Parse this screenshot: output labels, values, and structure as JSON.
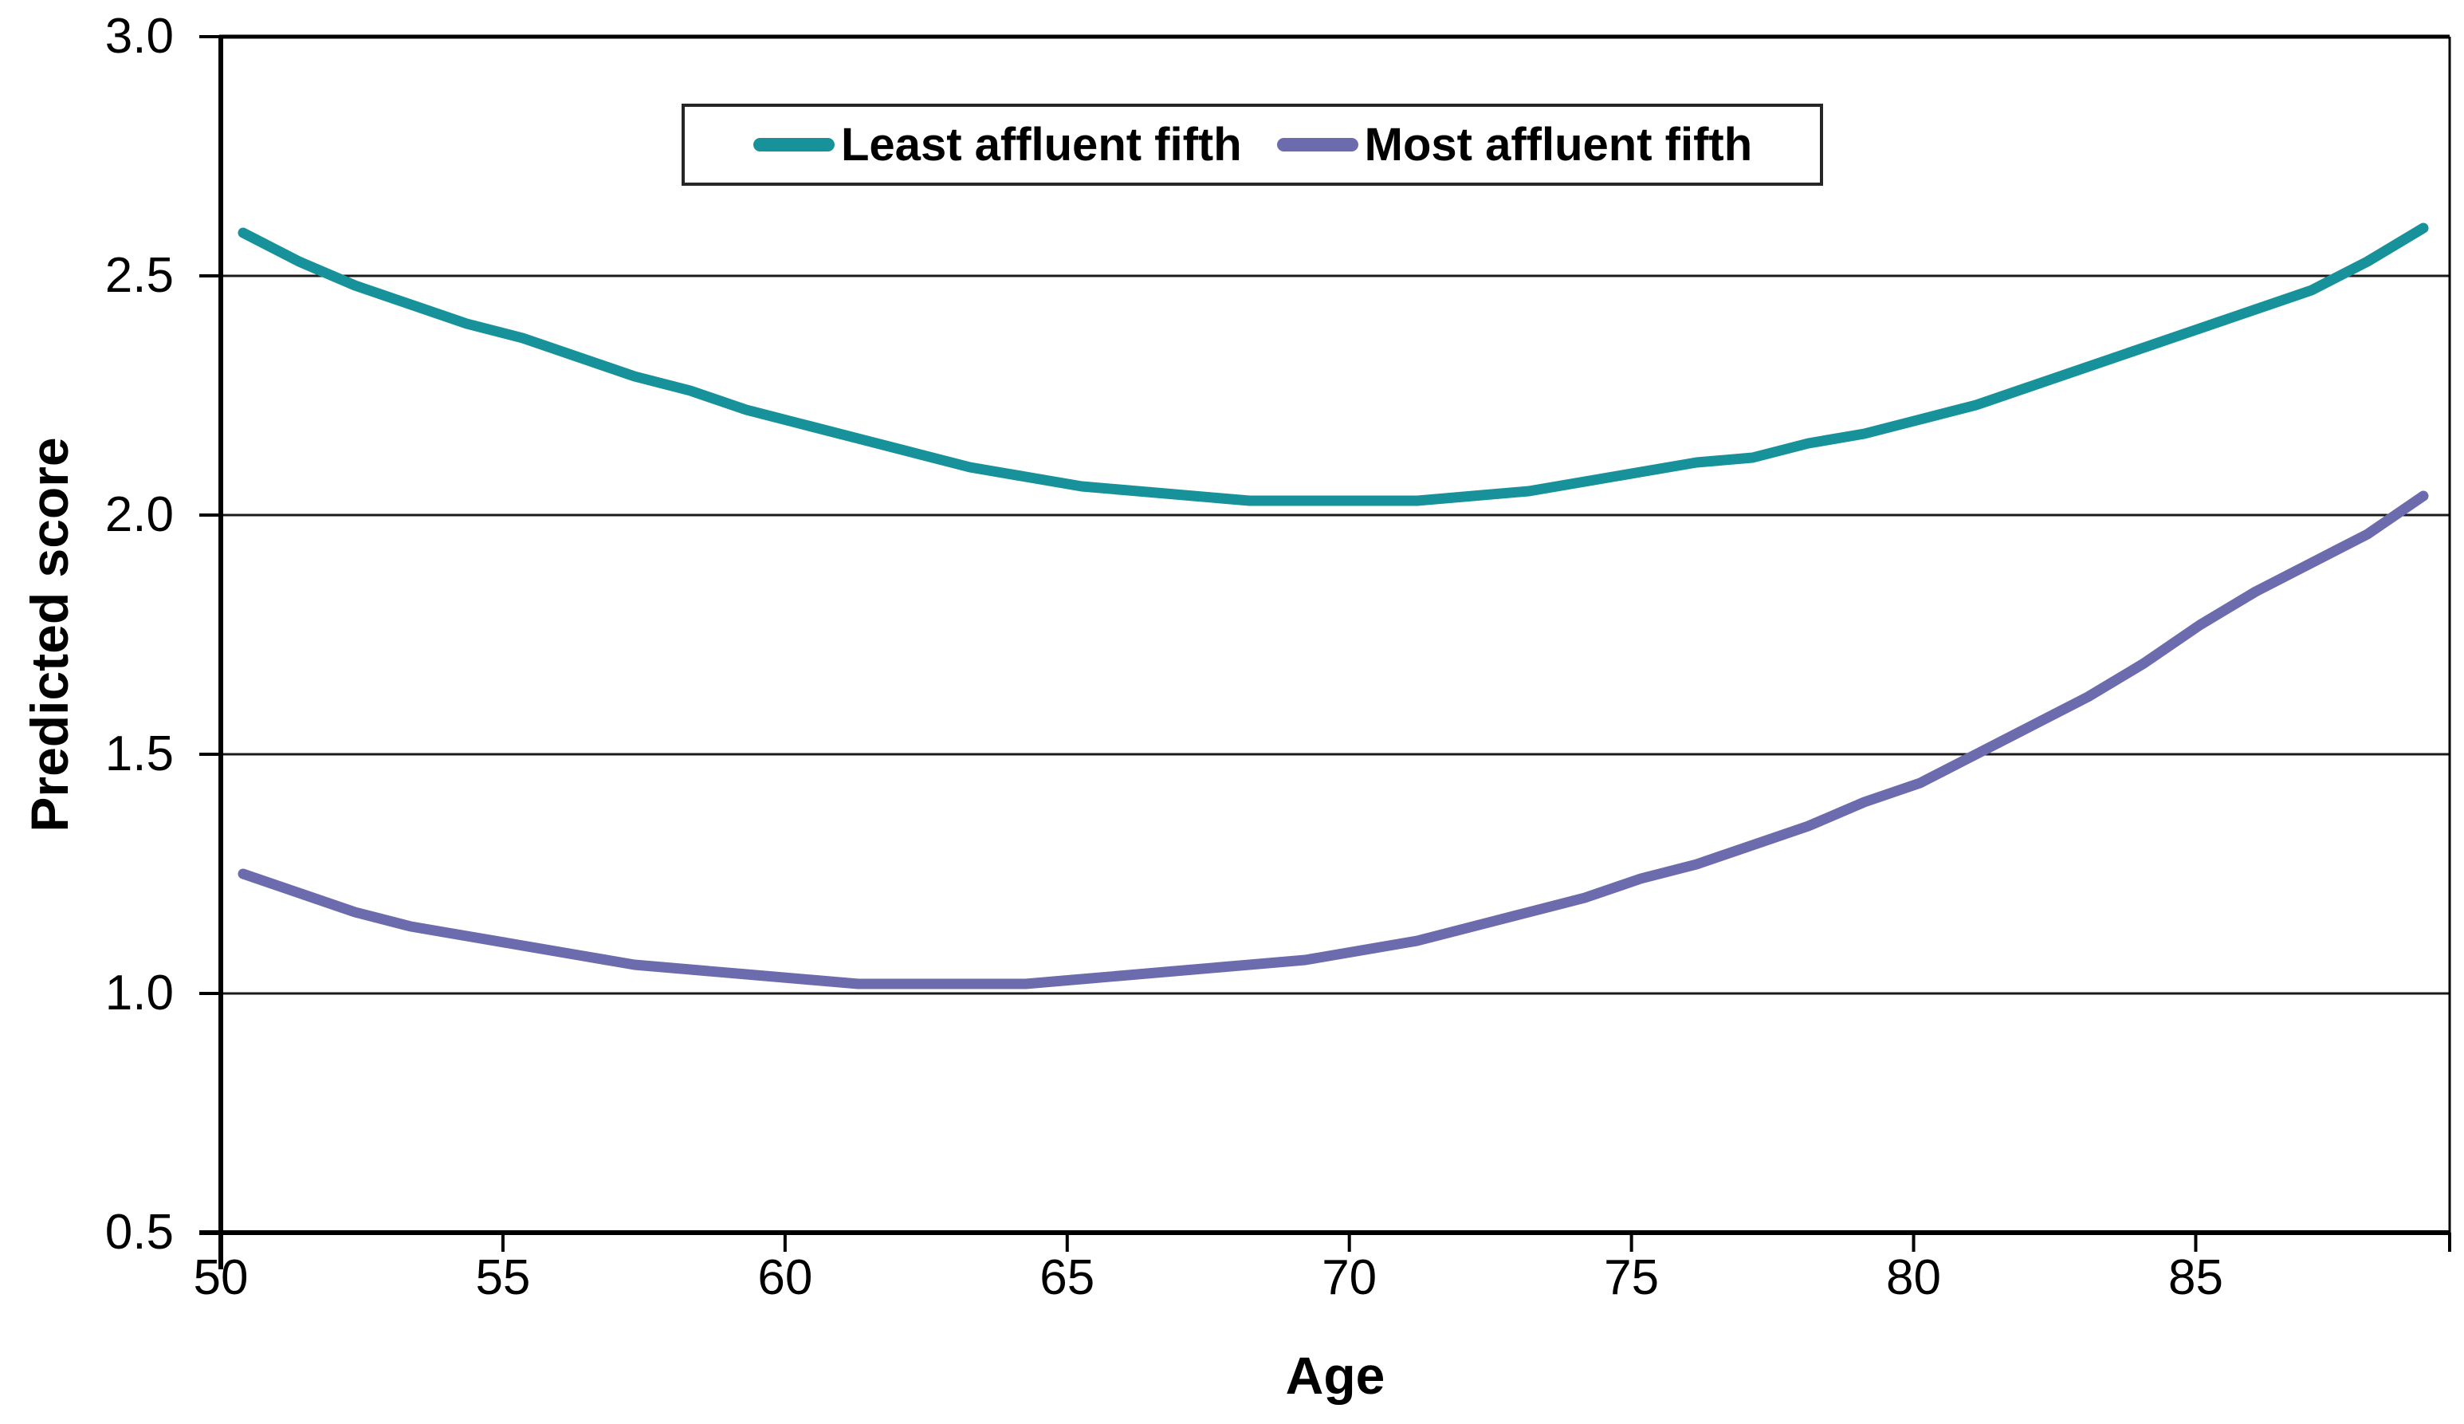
{
  "chart_data": {
    "type": "line",
    "title": "",
    "xlabel": "Age",
    "ylabel": "Predicted score",
    "xlim": [
      50,
      89.5
    ],
    "ylim": [
      0.5,
      3.0
    ],
    "x_ticks": [
      50,
      55,
      60,
      65,
      70,
      75,
      80,
      85
    ],
    "y_ticks": [
      "3.0",
      "2.5",
      "2.0",
      "1.5",
      "1.0",
      "0.5"
    ],
    "y_tick_values": [
      3.0,
      2.5,
      2.0,
      1.5,
      1.0,
      0.5
    ],
    "gridline_values": [
      2.5,
      2.0,
      1.5,
      1.0
    ],
    "grid": "horizontal",
    "legend_position": "top-center",
    "background_color": "#ffffff",
    "axis_color": "#000000",
    "gridline_color": "#1a1a1a",
    "x": [
      50,
      51,
      52,
      53,
      54,
      55,
      56,
      57,
      58,
      59,
      60,
      61,
      62,
      63,
      64,
      65,
      66,
      67,
      68,
      69,
      70,
      71,
      72,
      73,
      74,
      75,
      76,
      77,
      78,
      79,
      80,
      81,
      82,
      83,
      84,
      85,
      86,
      87,
      88,
      89
    ],
    "series": [
      {
        "name": "Least affluent fifth",
        "color": "#17929a",
        "values": [
          2.59,
          2.53,
          2.48,
          2.44,
          2.4,
          2.37,
          2.33,
          2.29,
          2.26,
          2.22,
          2.19,
          2.16,
          2.13,
          2.1,
          2.08,
          2.06,
          2.05,
          2.04,
          2.03,
          2.03,
          2.03,
          2.03,
          2.04,
          2.05,
          2.07,
          2.09,
          2.11,
          2.12,
          2.15,
          2.17,
          2.2,
          2.23,
          2.27,
          2.31,
          2.35,
          2.39,
          2.43,
          2.47,
          2.53,
          2.6
        ]
      },
      {
        "name": "Most affluent fifth",
        "color": "#6b6bae",
        "values": [
          1.25,
          1.21,
          1.17,
          1.14,
          1.12,
          1.1,
          1.08,
          1.06,
          1.05,
          1.04,
          1.03,
          1.02,
          1.02,
          1.02,
          1.02,
          1.03,
          1.04,
          1.05,
          1.06,
          1.07,
          1.09,
          1.11,
          1.14,
          1.17,
          1.2,
          1.24,
          1.27,
          1.31,
          1.35,
          1.4,
          1.44,
          1.5,
          1.56,
          1.62,
          1.69,
          1.77,
          1.84,
          1.9,
          1.96,
          2.04
        ]
      }
    ]
  }
}
